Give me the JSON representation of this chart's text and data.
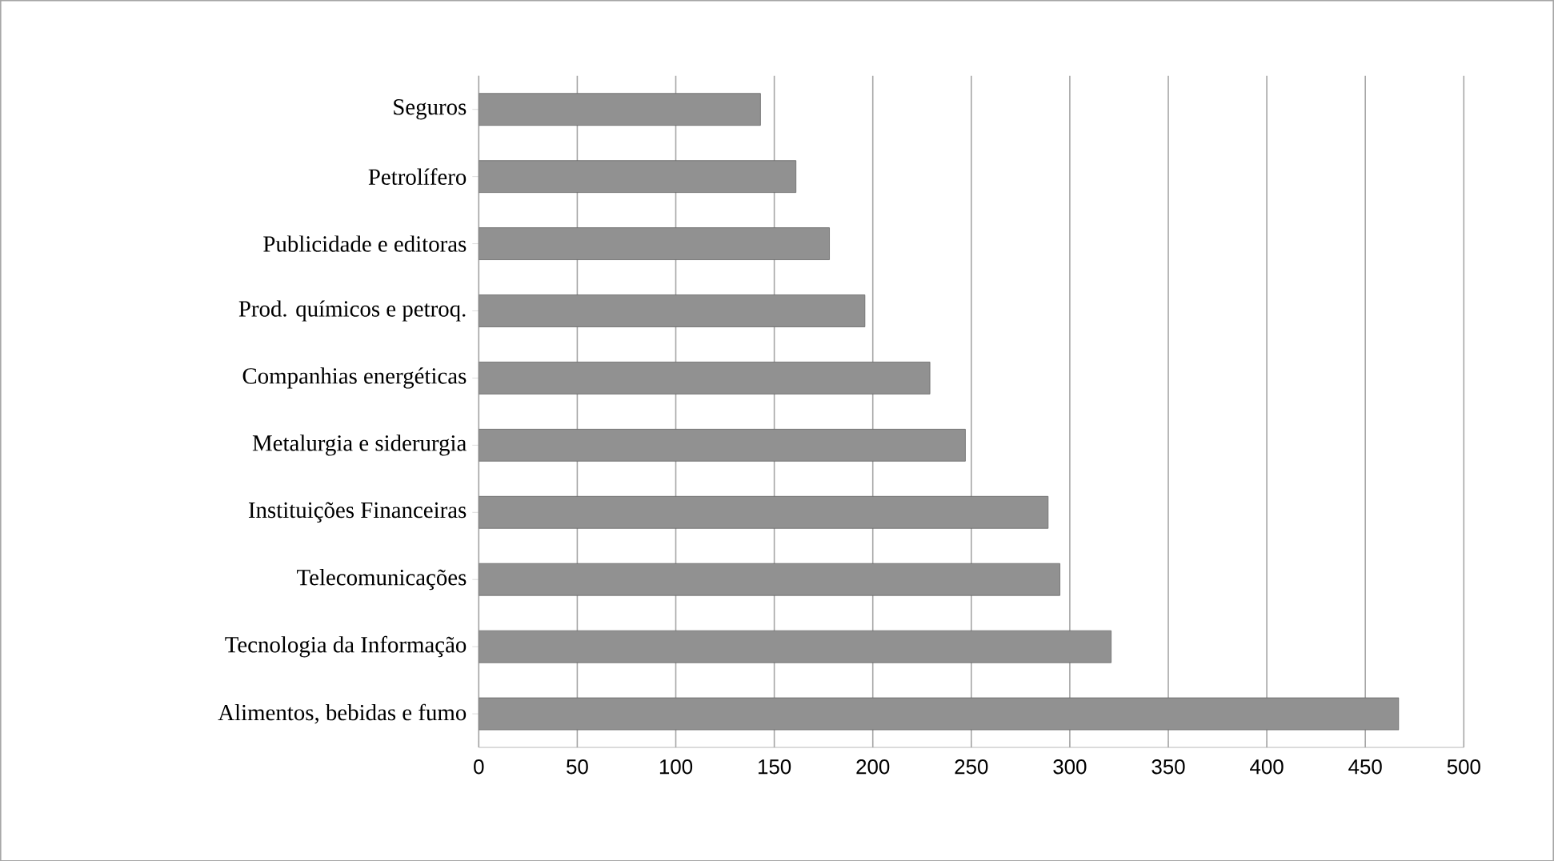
{
  "chart_data": {
    "type": "bar",
    "orientation": "horizontal",
    "categories": [
      "Seguros",
      "Petrolífero",
      "Publicidade e editoras",
      "Prod. químicos e petroq.",
      "Companhias energéticas",
      "Metalurgia e siderurgia",
      "Instituições Financeiras",
      "Telecomunicações",
      "Tecnologia da Informação",
      "Alimentos, bebidas e fumo"
    ],
    "values": [
      143,
      161,
      178,
      196,
      229,
      247,
      289,
      295,
      321,
      467
    ],
    "color": "#919191",
    "xlim": [
      0,
      500
    ],
    "xticks": [
      0,
      50,
      100,
      150,
      200,
      250,
      300,
      350,
      400,
      450,
      500
    ],
    "grid": "x"
  }
}
